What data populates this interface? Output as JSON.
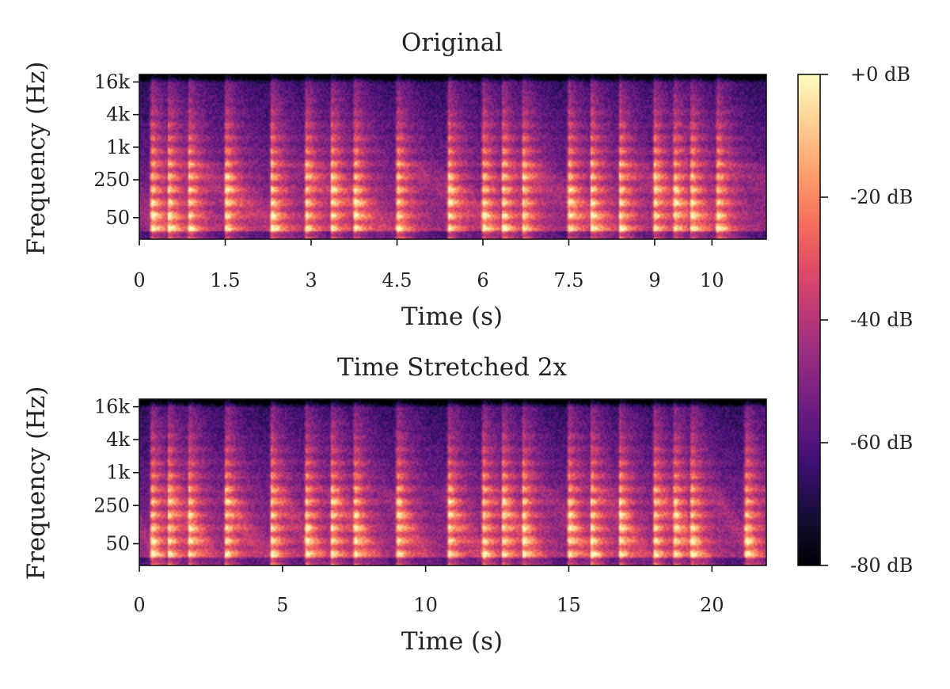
{
  "chart_data": [
    {
      "type": "heatmap",
      "title": "Original",
      "xlabel": "Time (s)",
      "ylabel": "Frequency (Hz)",
      "xlim": [
        0,
        10.95
      ],
      "x_ticks": [
        0,
        1.5,
        3,
        4.5,
        6,
        7.5,
        9,
        10
      ],
      "x_tick_labels": [
        "0",
        "1.5",
        "3",
        "4.5",
        "6",
        "7.5",
        "9",
        "10"
      ],
      "y_scale": "log",
      "ylim": [
        20,
        22050
      ],
      "y_ticks": [
        50,
        250,
        1000,
        4000,
        16000
      ],
      "y_tick_labels": [
        "50",
        "250",
        "1k",
        "4k",
        "16k"
      ],
      "onsets_s": [
        0.2,
        0.5,
        0.85,
        1.5,
        2.3,
        2.9,
        3.35,
        3.75,
        4.5,
        5.4,
        6.0,
        6.35,
        6.7,
        7.5,
        7.9,
        8.4,
        9.0,
        9.35,
        9.65,
        10.1
      ]
    },
    {
      "type": "heatmap",
      "title": "Time Stretched 2x",
      "xlabel": "Time (s)",
      "ylabel": "Frequency (Hz)",
      "xlim": [
        0,
        21.9
      ],
      "x_ticks": [
        0,
        5,
        10,
        15,
        20
      ],
      "x_tick_labels": [
        "0",
        "5",
        "10",
        "15",
        "20"
      ],
      "y_scale": "log",
      "ylim": [
        20,
        22050
      ],
      "y_ticks": [
        50,
        250,
        1000,
        4000,
        16000
      ],
      "y_tick_labels": [
        "50",
        "250",
        "1k",
        "4k",
        "16k"
      ],
      "onsets_s": [
        0.4,
        1.0,
        1.7,
        3.0,
        4.6,
        5.8,
        6.7,
        7.5,
        9.0,
        10.8,
        12.0,
        12.7,
        13.4,
        15.0,
        15.8,
        16.8,
        18.0,
        18.7,
        19.3,
        21.2
      ]
    }
  ],
  "colorbar": {
    "colormap": "magma",
    "range_db": [
      -80,
      0
    ],
    "ticks": [
      0,
      -20,
      -40,
      -60,
      -80
    ],
    "tick_labels": [
      "+0 dB",
      "-20 dB",
      "-40 dB",
      "-60 dB",
      "-80 dB"
    ]
  }
}
